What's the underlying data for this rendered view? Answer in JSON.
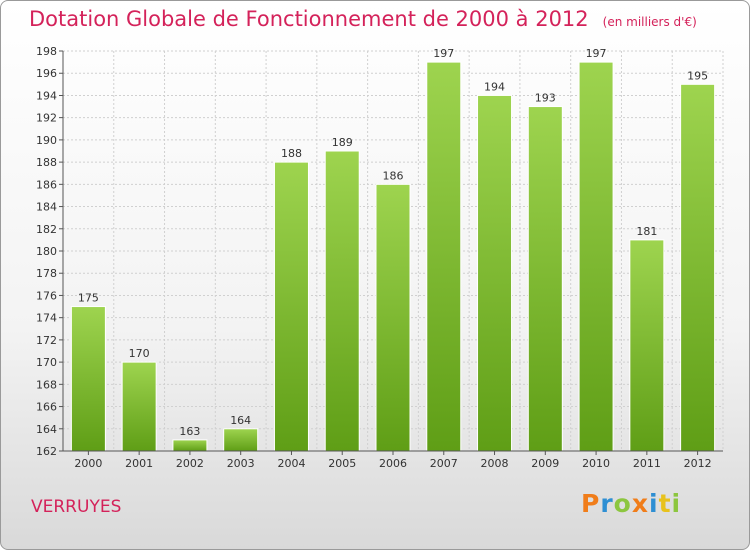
{
  "header": {
    "title": "Dotation Globale de Fonctionnement de 2000 à 2012",
    "unit": "(en milliers d'€)"
  },
  "footer": {
    "commune": "VERRUYES",
    "logo": {
      "letters": [
        "P",
        "r",
        "o",
        "x",
        "i",
        "t",
        "i"
      ],
      "colors": [
        "#f07d1a",
        "#2e8fd3",
        "#8cc63f",
        "#f07d1a",
        "#2e8fd3",
        "#e8c21c",
        "#8cc63f"
      ]
    }
  },
  "chart_data": {
    "type": "bar",
    "title": "Dotation Globale de Fonctionnement de 2000 à 2012",
    "ylabel": "",
    "xlabel": "",
    "categories": [
      "2000",
      "2001",
      "2002",
      "2003",
      "2004",
      "2005",
      "2006",
      "2007",
      "2008",
      "2009",
      "2010",
      "2011",
      "2012"
    ],
    "values": [
      175,
      170,
      163,
      164,
      188,
      189,
      186,
      197,
      194,
      193,
      197,
      181,
      195
    ],
    "ylim": [
      162,
      198
    ],
    "yticks": [
      162,
      164,
      166,
      168,
      170,
      172,
      174,
      176,
      178,
      180,
      182,
      184,
      186,
      188,
      190,
      192,
      194,
      196,
      198
    ],
    "grid": true,
    "legend": "none",
    "bar_color": "#7ac232"
  }
}
